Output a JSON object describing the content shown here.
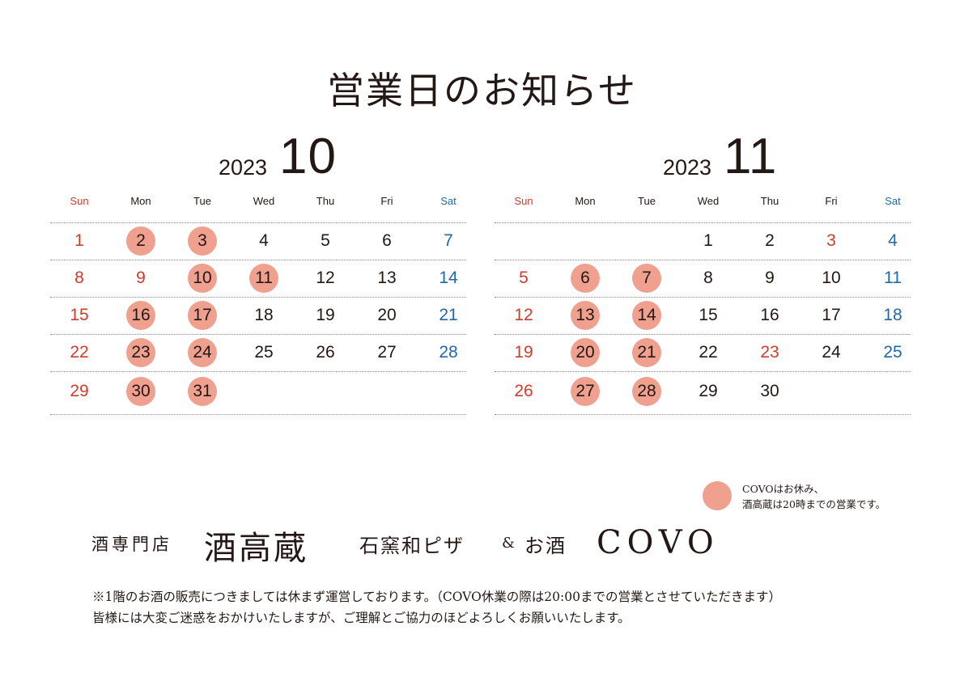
{
  "title": "営業日のお知らせ",
  "colors": {
    "closed_dot": "#f0a08f",
    "sunday_holiday": "#d03b2c",
    "saturday": "#2168a8",
    "text": "#231815"
  },
  "weekdays": [
    "Sun",
    "Mon",
    "Tue",
    "Wed",
    "Thu",
    "Fri",
    "Sat"
  ],
  "calendars": [
    {
      "year": "2023",
      "month": "10",
      "weeks": [
        [
          {
            "d": "1",
            "t": "sun"
          },
          {
            "d": "2",
            "t": "closed"
          },
          {
            "d": "3",
            "t": "closed"
          },
          {
            "d": "4",
            "t": ""
          },
          {
            "d": "5",
            "t": ""
          },
          {
            "d": "6",
            "t": ""
          },
          {
            "d": "7",
            "t": "sat"
          }
        ],
        [
          {
            "d": "8",
            "t": "sun"
          },
          {
            "d": "9",
            "t": "hol"
          },
          {
            "d": "10",
            "t": "closed"
          },
          {
            "d": "11",
            "t": "closed"
          },
          {
            "d": "12",
            "t": ""
          },
          {
            "d": "13",
            "t": ""
          },
          {
            "d": "14",
            "t": "sat"
          }
        ],
        [
          {
            "d": "15",
            "t": "sun"
          },
          {
            "d": "16",
            "t": "closed"
          },
          {
            "d": "17",
            "t": "closed"
          },
          {
            "d": "18",
            "t": ""
          },
          {
            "d": "19",
            "t": ""
          },
          {
            "d": "20",
            "t": ""
          },
          {
            "d": "21",
            "t": "sat"
          }
        ],
        [
          {
            "d": "22",
            "t": "sun"
          },
          {
            "d": "23",
            "t": "closed"
          },
          {
            "d": "24",
            "t": "closed"
          },
          {
            "d": "25",
            "t": ""
          },
          {
            "d": "26",
            "t": ""
          },
          {
            "d": "27",
            "t": ""
          },
          {
            "d": "28",
            "t": "sat"
          }
        ],
        [
          {
            "d": "29",
            "t": "sun"
          },
          {
            "d": "30",
            "t": "closed"
          },
          {
            "d": "31",
            "t": "closed"
          },
          null,
          null,
          null,
          null
        ]
      ]
    },
    {
      "year": "2023",
      "month": "11",
      "weeks": [
        [
          null,
          null,
          null,
          {
            "d": "1",
            "t": ""
          },
          {
            "d": "2",
            "t": ""
          },
          {
            "d": "3",
            "t": "hol"
          },
          {
            "d": "4",
            "t": "sat"
          }
        ],
        [
          {
            "d": "5",
            "t": "sun"
          },
          {
            "d": "6",
            "t": "closed"
          },
          {
            "d": "7",
            "t": "closed"
          },
          {
            "d": "8",
            "t": ""
          },
          {
            "d": "9",
            "t": ""
          },
          {
            "d": "10",
            "t": ""
          },
          {
            "d": "11",
            "t": "sat"
          }
        ],
        [
          {
            "d": "12",
            "t": "sun"
          },
          {
            "d": "13",
            "t": "closed"
          },
          {
            "d": "14",
            "t": "closed"
          },
          {
            "d": "15",
            "t": ""
          },
          {
            "d": "16",
            "t": ""
          },
          {
            "d": "17",
            "t": ""
          },
          {
            "d": "18",
            "t": "sat"
          }
        ],
        [
          {
            "d": "19",
            "t": "sun"
          },
          {
            "d": "20",
            "t": "closed"
          },
          {
            "d": "21",
            "t": "closed"
          },
          {
            "d": "22",
            "t": ""
          },
          {
            "d": "23",
            "t": "hol"
          },
          {
            "d": "24",
            "t": ""
          },
          {
            "d": "25",
            "t": "sat"
          }
        ],
        [
          {
            "d": "26",
            "t": "sun"
          },
          {
            "d": "27",
            "t": "closed"
          },
          {
            "d": "28",
            "t": "closed"
          },
          {
            "d": "29",
            "t": ""
          },
          {
            "d": "30",
            "t": ""
          },
          null,
          null
        ]
      ]
    }
  ],
  "legend": {
    "line1": "COVOはお休み、",
    "line2": "酒高蔵は20時までの営業です。"
  },
  "brand": {
    "shop1_sub": "酒専門店",
    "shop1_name": "酒高蔵",
    "shop2_sub": "石窯和ピザ",
    "amp": "&",
    "shop2_sub2": "お酒",
    "shop2_name": "COVO"
  },
  "notes": {
    "line1": "※1階のお酒の販売につきましては休まず運営しております。（COVO休業の際は20:00までの営業とさせていただきます）",
    "line2": "皆様には大変ご迷惑をおかけいたしますが、ご理解とご協力のほどよろしくお願いいたします。"
  }
}
